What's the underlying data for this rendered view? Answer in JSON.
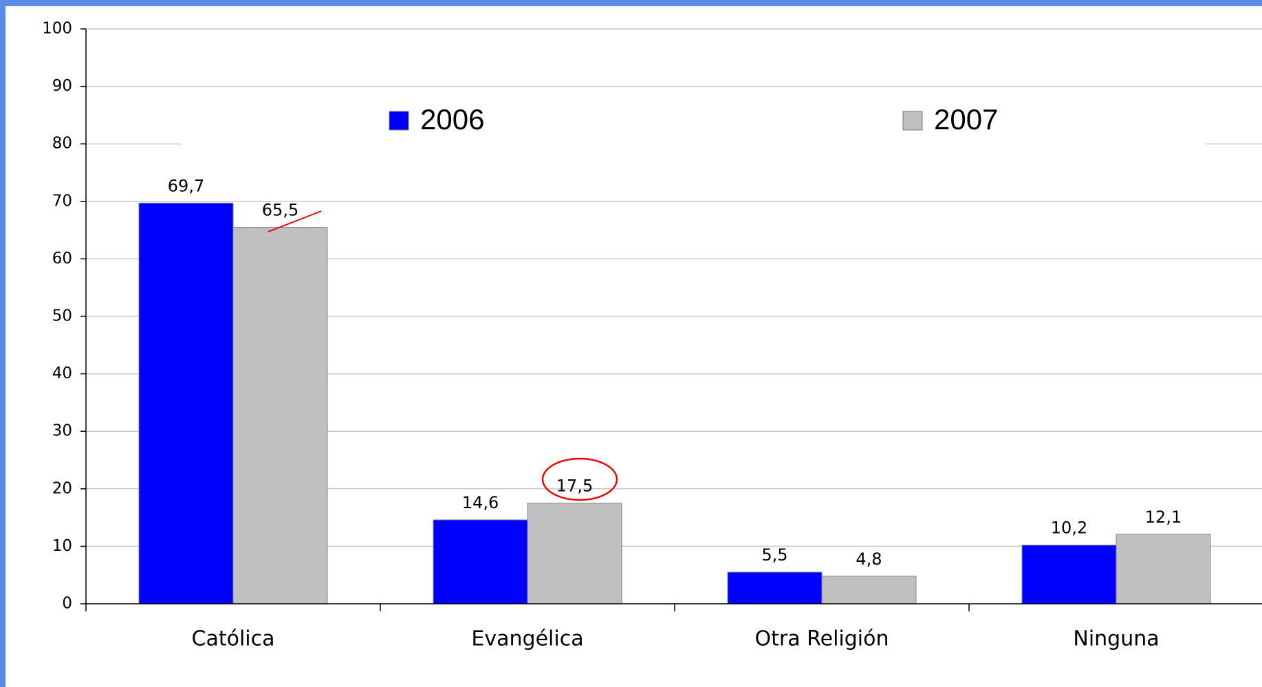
{
  "chart_data": {
    "type": "bar",
    "categories": [
      "Católica",
      "Evangélica",
      "Otra Religión",
      "Ninguna"
    ],
    "series": [
      {
        "name": "2006",
        "color": "#0000ff",
        "values": [
          69.7,
          14.6,
          5.5,
          10.2
        ],
        "value_labels": [
          "69,7",
          "14,6",
          "5,5",
          "10,2"
        ]
      },
      {
        "name": "2007",
        "color": "#c0c0c0",
        "values": [
          65.5,
          17.5,
          4.8,
          12.1
        ],
        "value_labels": [
          "65,5",
          "17,5",
          "4,8",
          "12,1"
        ]
      }
    ],
    "ylim": [
      0,
      100
    ],
    "yticks": [
      0,
      10,
      20,
      30,
      40,
      50,
      60,
      70,
      80,
      90,
      100
    ],
    "grid": true,
    "legend": "top"
  }
}
